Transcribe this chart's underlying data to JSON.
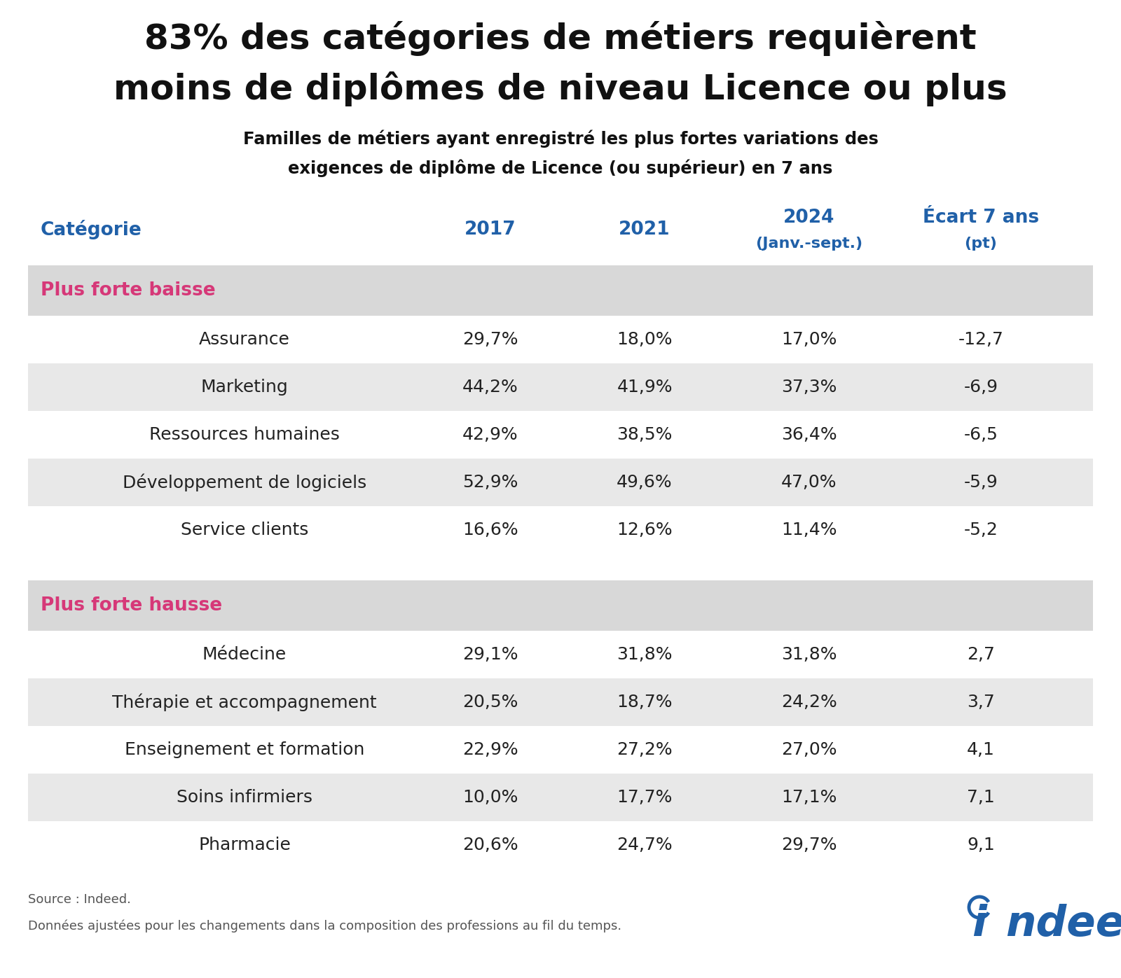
{
  "title_line1": "83% des catégories de métiers requièrent",
  "title_line2": "moins de diplômes de niveau Licence ou plus",
  "subtitle_line1": "Familles de métiers ayant enregistré les plus fortes variations des",
  "subtitle_line2": "exigences de diplôme de Licence (ou supérieur) en 7 ans",
  "col_header_cat": "Catégorie",
  "col_header_2017": "2017",
  "col_header_2021": "2021",
  "col_header_2024a": "2024",
  "col_header_2024b": "(Janv.-sept.)",
  "col_header_ecarta": "Écart 7 ans",
  "col_header_ecartb": "(pt)",
  "section_baisse": "Plus forte baisse",
  "section_hausse": "Plus forte hausse",
  "rows_baisse": [
    [
      "Assurance",
      "29,7%",
      "18,0%",
      "17,0%",
      "-12,7"
    ],
    [
      "Marketing",
      "44,2%",
      "41,9%",
      "37,3%",
      "-6,9"
    ],
    [
      "Ressources humaines",
      "42,9%",
      "38,5%",
      "36,4%",
      "-6,5"
    ],
    [
      "Développement de logiciels",
      "52,9%",
      "49,6%",
      "47,0%",
      "-5,9"
    ],
    [
      "Service clients",
      "16,6%",
      "12,6%",
      "11,4%",
      "-5,2"
    ]
  ],
  "rows_hausse": [
    [
      "Médecine",
      "29,1%",
      "31,8%",
      "31,8%",
      "2,7"
    ],
    [
      "Thérapie et accompagnement",
      "20,5%",
      "18,7%",
      "24,2%",
      "3,7"
    ],
    [
      "Enseignement et formation",
      "22,9%",
      "27,2%",
      "27,0%",
      "4,1"
    ],
    [
      "Soins infirmiers",
      "10,0%",
      "17,7%",
      "17,1%",
      "7,1"
    ],
    [
      "Pharmacie",
      "20,6%",
      "24,7%",
      "29,7%",
      "9,1"
    ]
  ],
  "source_line1": "Source : Indeed.",
  "source_line2": "Données ajustées pour les changements dans la composition des professions au fil du temps.",
  "color_title": "#111111",
  "color_header": "#2060a8",
  "color_section": "#d63878",
  "color_body": "#222222",
  "color_bg_section": "#d8d8d8",
  "color_bg_alt": "#e8e8e8",
  "color_bg_white": "#ffffff",
  "color_source": "#555555",
  "indeed_blue": "#2060a8"
}
